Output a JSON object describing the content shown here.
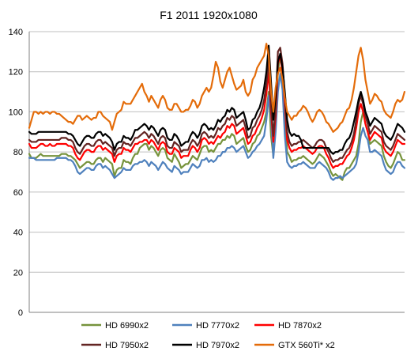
{
  "chart_data": {
    "type": "line",
    "title": "F1 2011 1920x1080",
    "xlabel": "",
    "ylabel": "",
    "ylim": [
      0,
      140
    ],
    "yticks": [
      0,
      20,
      40,
      60,
      80,
      100,
      120,
      140
    ],
    "grid": true,
    "legend_position": "bottom",
    "series": [
      {
        "name": "HD 6990x2",
        "color": "#76933c",
        "values": [
          79,
          77,
          77,
          77,
          78,
          79,
          78,
          78,
          78,
          78,
          78,
          78,
          78,
          78,
          79,
          79,
          79,
          78,
          78,
          77,
          76,
          74,
          72,
          73,
          74,
          75,
          75,
          74,
          74,
          76,
          77,
          77,
          75,
          77,
          76,
          75,
          74,
          68,
          71,
          72,
          72,
          76,
          75,
          75,
          74,
          77,
          79,
          79,
          82,
          83,
          84,
          84,
          81,
          83,
          82,
          80,
          78,
          81,
          82,
          81,
          77,
          76,
          75,
          79,
          77,
          75,
          72,
          73,
          74,
          74,
          76,
          78,
          77,
          76,
          79,
          82,
          83,
          83,
          80,
          81,
          80,
          82,
          84,
          84,
          86,
          86,
          88,
          87,
          89,
          88,
          84,
          85,
          86,
          87,
          83,
          80,
          81,
          84,
          85,
          88,
          89,
          92,
          95,
          100,
          110,
          88,
          78,
          92,
          120,
          128,
          119,
          100,
          80,
          78,
          75,
          76,
          76,
          77,
          77,
          78,
          77,
          76,
          75,
          74,
          75,
          77,
          79,
          78,
          77,
          75,
          73,
          70,
          68,
          69,
          68,
          67,
          66,
          70,
          72,
          72,
          74,
          76,
          78,
          84,
          95,
          100,
          94,
          90,
          84,
          85,
          86,
          85,
          84,
          83,
          78,
          75,
          73,
          72,
          74,
          77,
          80,
          79,
          76,
          76
        ]
      },
      {
        "name": "HD 7770x2",
        "color": "#4f81bd",
        "values": [
          77,
          77,
          77,
          76,
          76,
          76,
          76,
          76,
          76,
          76,
          76,
          76,
          77,
          77,
          77,
          77,
          77,
          76,
          76,
          75,
          73,
          70,
          69,
          70,
          71,
          72,
          72,
          71,
          71,
          73,
          74,
          74,
          72,
          73,
          72,
          71,
          69,
          67,
          68,
          69,
          70,
          72,
          71,
          71,
          71,
          73,
          74,
          74,
          75,
          75,
          76,
          75,
          73,
          75,
          74,
          73,
          71,
          73,
          75,
          74,
          72,
          71,
          70,
          73,
          72,
          71,
          69,
          70,
          70,
          70,
          72,
          74,
          73,
          72,
          73,
          76,
          76,
          77,
          75,
          76,
          75,
          76,
          78,
          78,
          80,
          80,
          82,
          82,
          83,
          82,
          80,
          81,
          82,
          83,
          80,
          77,
          78,
          80,
          81,
          83,
          84,
          86,
          88,
          96,
          108,
          97,
          77,
          90,
          110,
          119,
          111,
          88,
          75,
          73,
          72,
          73,
          73,
          74,
          74,
          75,
          74,
          73,
          72,
          72,
          72,
          74,
          75,
          74,
          73,
          72,
          70,
          67,
          66,
          67,
          67,
          68,
          67,
          68,
          69,
          70,
          71,
          72,
          74,
          80,
          88,
          92,
          88,
          86,
          80,
          80,
          81,
          80,
          79,
          78,
          74,
          71,
          70,
          69,
          70,
          73,
          75,
          75,
          73,
          72
        ]
      },
      {
        "name": "HD 7870x2",
        "color": "#ff0000",
        "values": [
          84,
          82,
          82,
          82,
          83,
          84,
          84,
          83,
          83,
          84,
          83,
          83,
          84,
          84,
          84,
          84,
          84,
          83,
          83,
          82,
          79,
          77,
          76,
          78,
          80,
          81,
          81,
          80,
          80,
          82,
          83,
          83,
          81,
          82,
          81,
          80,
          79,
          75,
          78,
          79,
          79,
          82,
          81,
          81,
          80,
          82,
          84,
          84,
          85,
          85,
          86,
          86,
          84,
          86,
          85,
          83,
          81,
          84,
          85,
          84,
          80,
          79,
          79,
          82,
          81,
          80,
          77,
          78,
          78,
          78,
          81,
          83,
          82,
          80,
          82,
          86,
          87,
          86,
          84,
          85,
          84,
          86,
          88,
          87,
          89,
          90,
          93,
          92,
          94,
          93,
          89,
          90,
          91,
          92,
          88,
          84,
          85,
          88,
          89,
          92,
          94,
          97,
          101,
          109,
          120,
          100,
          85,
          98,
          124,
          128,
          120,
          104,
          86,
          82,
          80,
          81,
          81,
          82,
          82,
          83,
          82,
          81,
          80,
          79,
          80,
          82,
          83,
          83,
          82,
          79,
          77,
          74,
          72,
          73,
          73,
          74,
          74,
          76,
          78,
          79,
          82,
          86,
          92,
          100,
          104,
          100,
          94,
          90,
          86,
          88,
          90,
          89,
          88,
          87,
          82,
          80,
          79,
          78,
          80,
          83,
          86,
          85,
          84,
          84
        ]
      },
      {
        "name": "HD 7950x2",
        "color": "#632523",
        "values": [
          86,
          85,
          85,
          85,
          86,
          86,
          86,
          86,
          86,
          86,
          86,
          86,
          86,
          86,
          87,
          87,
          87,
          86,
          86,
          85,
          82,
          80,
          79,
          81,
          83,
          84,
          84,
          83,
          83,
          85,
          86,
          86,
          84,
          85,
          84,
          83,
          82,
          78,
          81,
          82,
          82,
          85,
          84,
          84,
          83,
          85,
          87,
          87,
          88,
          89,
          90,
          89,
          87,
          89,
          88,
          86,
          84,
          87,
          88,
          87,
          83,
          82,
          82,
          85,
          84,
          83,
          80,
          81,
          81,
          81,
          84,
          86,
          85,
          83,
          85,
          89,
          90,
          89,
          87,
          88,
          87,
          89,
          92,
          91,
          93,
          94,
          97,
          96,
          98,
          97,
          93,
          94,
          95,
          96,
          92,
          87,
          88,
          92,
          93,
          96,
          98,
          101,
          106,
          114,
          126,
          104,
          88,
          102,
          130,
          132,
          124,
          108,
          90,
          85,
          83,
          84,
          84,
          85,
          85,
          86,
          85,
          84,
          83,
          82,
          83,
          85,
          86,
          86,
          85,
          82,
          80,
          77,
          75,
          76,
          76,
          77,
          77,
          79,
          81,
          82,
          85,
          89,
          96,
          104,
          108,
          104,
          98,
          94,
          89,
          91,
          93,
          92,
          91,
          90,
          85,
          83,
          82,
          81,
          83,
          86,
          89,
          88,
          87,
          86
        ]
      },
      {
        "name": "HD 7970x2",
        "color": "#000000",
        "values": [
          90,
          89,
          89,
          89,
          90,
          90,
          90,
          90,
          90,
          90,
          90,
          90,
          90,
          90,
          90,
          90,
          90,
          89,
          89,
          88,
          86,
          84,
          83,
          85,
          87,
          88,
          88,
          87,
          87,
          89,
          90,
          90,
          88,
          89,
          88,
          87,
          85,
          81,
          84,
          85,
          85,
          88,
          87,
          87,
          86,
          88,
          91,
          91,
          92,
          93,
          94,
          93,
          91,
          93,
          92,
          90,
          88,
          91,
          92,
          91,
          87,
          86,
          86,
          89,
          88,
          86,
          83,
          84,
          85,
          85,
          88,
          90,
          89,
          87,
          89,
          93,
          94,
          93,
          91,
          92,
          91,
          93,
          96,
          95,
          97,
          98,
          101,
          100,
          102,
          101,
          97,
          98,
          99,
          100,
          96,
          91,
          92,
          96,
          97,
          100,
          102,
          106,
          112,
          120,
          133,
          115,
          96,
          108,
          125,
          129,
          122,
          110,
          96,
          90,
          88,
          89,
          88,
          88,
          86,
          82,
          82,
          82,
          82,
          82,
          82,
          82,
          82,
          82,
          82,
          82,
          82,
          80,
          79,
          80,
          80,
          81,
          81,
          84,
          86,
          87,
          90,
          95,
          100,
          106,
          110,
          106,
          100,
          97,
          93,
          95,
          97,
          96,
          95,
          94,
          90,
          88,
          87,
          86,
          88,
          91,
          94,
          93,
          92,
          90
        ]
      },
      {
        "name": "GTX 560Ti* x2",
        "color": "#e46c0a",
        "values": [
          92,
          96,
          100,
          100,
          99,
          100,
          99,
          100,
          100,
          99,
          100,
          100,
          99,
          99,
          98,
          97,
          96,
          95,
          95,
          94,
          96,
          98,
          98,
          96,
          97,
          98,
          97,
          96,
          97,
          97,
          100,
          100,
          98,
          97,
          96,
          95,
          91,
          95,
          99,
          100,
          101,
          105,
          104,
          104,
          104,
          106,
          108,
          110,
          112,
          114,
          110,
          108,
          105,
          108,
          106,
          104,
          102,
          106,
          108,
          106,
          102,
          101,
          101,
          104,
          104,
          102,
          100,
          100,
          101,
          101,
          103,
          106,
          105,
          102,
          104,
          108,
          110,
          112,
          110,
          112,
          118,
          125,
          122,
          115,
          112,
          116,
          120,
          122,
          118,
          114,
          111,
          112,
          113,
          116,
          110,
          108,
          110,
          116,
          118,
          122,
          124,
          126,
          128,
          134,
          128,
          110,
          100,
          112,
          119,
          122,
          116,
          107,
          100,
          98,
          96,
          98,
          98,
          100,
          101,
          103,
          102,
          100,
          97,
          95,
          97,
          100,
          101,
          100,
          98,
          95,
          94,
          92,
          90,
          91,
          92,
          94,
          95,
          98,
          101,
          102,
          106,
          112,
          120,
          128,
          132,
          126,
          116,
          110,
          104,
          106,
          109,
          108,
          106,
          105,
          101,
          99,
          98,
          97,
          100,
          104,
          106,
          105,
          106,
          110
        ]
      }
    ]
  }
}
